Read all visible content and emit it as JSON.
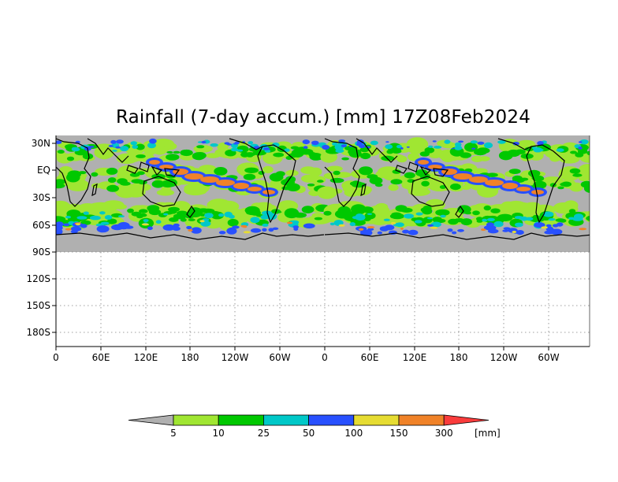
{
  "title": "Rainfall (7-day accum.) [mm] 17Z08Feb2024",
  "lat_labels": [
    "30N",
    "EQ",
    "30S",
    "60S",
    "90S",
    "120S",
    "150S",
    "180S"
  ],
  "lon_labels": [
    "0",
    "60E",
    "120E",
    "180",
    "120W",
    "60W",
    "0",
    "60E",
    "120E",
    "180",
    "120W",
    "60W"
  ],
  "colorbar": {
    "unit": "[mm]",
    "thresholds": [
      "5",
      "10",
      "25",
      "50",
      "100",
      "150",
      "300"
    ],
    "colors": [
      "#b0b0b0",
      "#a0e632",
      "#00c800",
      "#00c8c8",
      "#2850ff",
      "#e6dc32",
      "#f08228",
      "#fa3c3c"
    ]
  },
  "colors": {
    "land_bg": "#b0b0b0",
    "grid": "#808080",
    "coast": "#000000"
  }
}
